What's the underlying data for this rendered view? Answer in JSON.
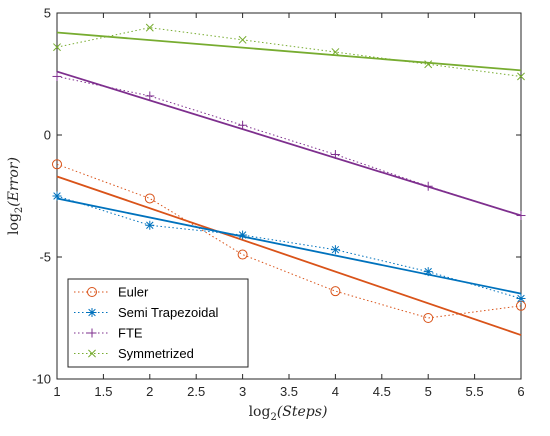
{
  "chart_data": {
    "type": "line",
    "xlabel_base": "log",
    "xlabel_sub": "2",
    "xlabel_arg": "(Steps)",
    "ylabel_base": "log",
    "ylabel_sub": "2",
    "ylabel_arg": "(Error)",
    "xlim": [
      1,
      6
    ],
    "ylim": [
      -10,
      5
    ],
    "x_ticks": [
      1,
      1.5,
      2,
      2.5,
      3,
      3.5,
      4,
      4.5,
      5,
      5.5,
      6
    ],
    "y_ticks": [
      -10,
      -5,
      0,
      5
    ],
    "grid": false,
    "legend_position": "bottom-left",
    "series": [
      {
        "name": "Euler",
        "color": "#D95319",
        "marker": "circle",
        "x": [
          1,
          2,
          3,
          4,
          5,
          6
        ],
        "y": [
          -1.2,
          -2.6,
          -4.9,
          -6.4,
          -7.5,
          -7.0
        ],
        "fit": {
          "x": [
            1,
            6
          ],
          "y": [
            -1.7,
            -8.2
          ]
        }
      },
      {
        "name": "Semi Trapezoidal",
        "color": "#0072BD",
        "marker": "asterisk",
        "x": [
          1,
          2,
          3,
          4,
          5,
          6
        ],
        "y": [
          -2.5,
          -3.7,
          -4.1,
          -4.7,
          -5.6,
          -6.7
        ],
        "fit": {
          "x": [
            1,
            6
          ],
          "y": [
            -2.6,
            -6.5
          ]
        }
      },
      {
        "name": "FTE",
        "color": "#7E2F8E",
        "marker": "plus",
        "x": [
          1,
          2,
          3,
          4,
          5,
          6
        ],
        "y": [
          2.4,
          1.6,
          0.4,
          -0.8,
          -2.1,
          -3.3
        ],
        "fit": {
          "x": [
            1,
            6
          ],
          "y": [
            2.6,
            -3.3
          ]
        }
      },
      {
        "name": "Symmetrized",
        "color": "#77AC30",
        "marker": "x",
        "x": [
          1,
          2,
          3,
          4,
          5,
          6
        ],
        "y": [
          3.6,
          4.4,
          3.9,
          3.4,
          2.9,
          2.4
        ],
        "fit": {
          "x": [
            1,
            6
          ],
          "y": [
            4.2,
            2.65
          ]
        }
      }
    ]
  }
}
